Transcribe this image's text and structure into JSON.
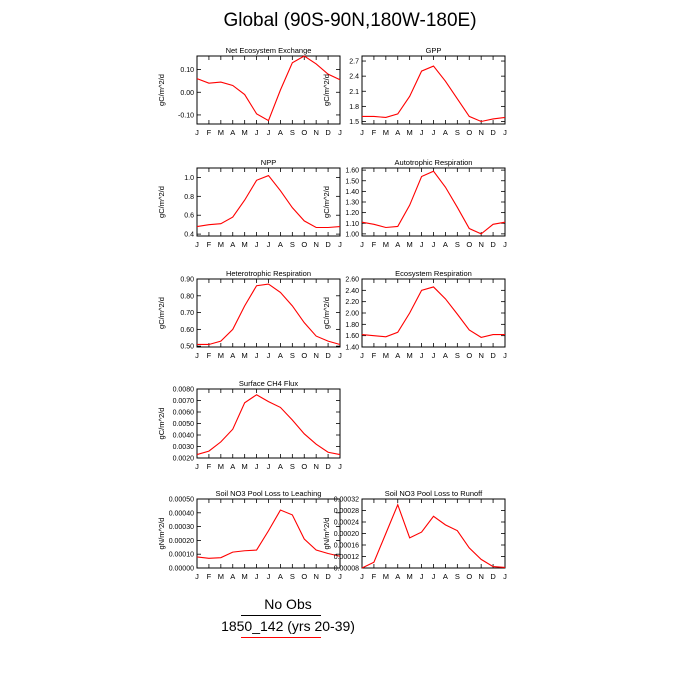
{
  "title": "Global (90S-90N,180W-180E)",
  "legend": {
    "entries": [
      {
        "label": "No Obs",
        "color": "#000000"
      },
      {
        "label": "1850_142 (yrs 20-39)",
        "color": "#ff0000"
      }
    ]
  },
  "chart_data": [
    {
      "type": "line",
      "title": "Net Ecosystem Exchange",
      "ylabel": "gC/m^2/d",
      "categories": [
        "J",
        "F",
        "M",
        "A",
        "M",
        "J",
        "J",
        "A",
        "S",
        "O",
        "N",
        "D",
        "J"
      ],
      "yticks": [
        -0.1,
        0.0,
        0.1
      ],
      "yticklabels": [
        "-0.10",
        "0.00",
        "0.10"
      ],
      "ylim": [
        -0.14,
        0.16
      ],
      "series": [
        {
          "color": "#ff0000",
          "values": [
            0.06,
            0.04,
            0.045,
            0.03,
            -0.01,
            -0.095,
            -0.125,
            0.01,
            0.13,
            0.16,
            0.125,
            0.08,
            0.055
          ]
        }
      ]
    },
    {
      "type": "line",
      "title": "GPP",
      "ylabel": "gC/m^2/d",
      "categories": [
        "J",
        "F",
        "M",
        "A",
        "M",
        "J",
        "J",
        "A",
        "S",
        "O",
        "N",
        "D",
        "J"
      ],
      "yticks": [
        1.5,
        1.8,
        2.1,
        2.4,
        2.7
      ],
      "yticklabels": [
        "1.5",
        "1.8",
        "2.1",
        "2.4",
        "2.7"
      ],
      "ylim": [
        1.45,
        2.8
      ],
      "series": [
        {
          "color": "#ff0000",
          "values": [
            1.6,
            1.6,
            1.58,
            1.65,
            2.0,
            2.5,
            2.6,
            2.3,
            1.95,
            1.6,
            1.5,
            1.55,
            1.58
          ]
        }
      ]
    },
    {
      "type": "line",
      "title": "NPP",
      "ylabel": "gC/m^2/d",
      "categories": [
        "J",
        "F",
        "M",
        "A",
        "M",
        "J",
        "J",
        "A",
        "S",
        "O",
        "N",
        "D",
        "J"
      ],
      "yticks": [
        0.4,
        0.6,
        0.8,
        1.0
      ],
      "yticklabels": [
        "0.4",
        "0.6",
        "0.8",
        "1.0"
      ],
      "ylim": [
        0.38,
        1.1
      ],
      "series": [
        {
          "color": "#ff0000",
          "values": [
            0.48,
            0.5,
            0.51,
            0.58,
            0.76,
            0.97,
            1.02,
            0.86,
            0.68,
            0.54,
            0.47,
            0.47,
            0.48
          ]
        }
      ]
    },
    {
      "type": "line",
      "title": "Autotrophic Respiration",
      "ylabel": "gC/m^2/d",
      "categories": [
        "J",
        "F",
        "M",
        "A",
        "M",
        "J",
        "J",
        "A",
        "S",
        "O",
        "N",
        "D",
        "J"
      ],
      "yticks": [
        1.0,
        1.1,
        1.2,
        1.3,
        1.4,
        1.5,
        1.6
      ],
      "yticklabels": [
        "1.00",
        "1.10",
        "1.20",
        "1.30",
        "1.40",
        "1.50",
        "1.60"
      ],
      "ylim": [
        0.98,
        1.62
      ],
      "series": [
        {
          "color": "#ff0000",
          "values": [
            1.11,
            1.09,
            1.06,
            1.07,
            1.27,
            1.54,
            1.59,
            1.44,
            1.25,
            1.05,
            1.0,
            1.09,
            1.11
          ]
        }
      ]
    },
    {
      "type": "line",
      "title": "Heterotrophic Respiration",
      "ylabel": "gC/m^2/d",
      "categories": [
        "J",
        "F",
        "M",
        "A",
        "M",
        "J",
        "J",
        "A",
        "S",
        "O",
        "N",
        "D",
        "J"
      ],
      "yticks": [
        0.5,
        0.6,
        0.7,
        0.8,
        0.9
      ],
      "yticklabels": [
        "0.50",
        "0.60",
        "0.70",
        "0.80",
        "0.90"
      ],
      "ylim": [
        0.495,
        0.9
      ],
      "series": [
        {
          "color": "#ff0000",
          "values": [
            0.51,
            0.51,
            0.53,
            0.6,
            0.74,
            0.86,
            0.87,
            0.82,
            0.74,
            0.64,
            0.56,
            0.53,
            0.51
          ]
        }
      ]
    },
    {
      "type": "line",
      "title": "Ecosystem Respiration",
      "ylabel": "gC/m^2/d",
      "categories": [
        "J",
        "F",
        "M",
        "A",
        "M",
        "J",
        "J",
        "A",
        "S",
        "O",
        "N",
        "D",
        "J"
      ],
      "yticks": [
        1.4,
        1.6,
        1.8,
        2.0,
        2.2,
        2.4,
        2.6
      ],
      "yticklabels": [
        "1.40",
        "1.60",
        "1.80",
        "2.00",
        "2.20",
        "2.40",
        "2.60"
      ],
      "ylim": [
        1.4,
        2.6
      ],
      "series": [
        {
          "color": "#ff0000",
          "values": [
            1.62,
            1.6,
            1.58,
            1.66,
            2.0,
            2.4,
            2.46,
            2.25,
            1.98,
            1.7,
            1.57,
            1.62,
            1.62
          ]
        }
      ]
    },
    {
      "type": "line",
      "title": "Surface CH4 Flux",
      "ylabel": "gC/m^2/d",
      "categories": [
        "J",
        "F",
        "M",
        "A",
        "M",
        "J",
        "J",
        "A",
        "S",
        "O",
        "N",
        "D",
        "J"
      ],
      "yticks": [
        0.002,
        0.003,
        0.004,
        0.005,
        0.006,
        0.007,
        0.008
      ],
      "yticklabels": [
        "0.0020",
        "0.0030",
        "0.0040",
        "0.0050",
        "0.0060",
        "0.0070",
        "0.0080"
      ],
      "ylim": [
        0.002,
        0.008
      ],
      "series": [
        {
          "color": "#ff0000",
          "values": [
            0.0023,
            0.0026,
            0.0034,
            0.0045,
            0.0068,
            0.0075,
            0.0069,
            0.0064,
            0.0053,
            0.0041,
            0.0032,
            0.0025,
            0.0023
          ]
        }
      ]
    },
    {
      "type": "line",
      "title": "Soil NO3 Pool Loss to Leaching",
      "ylabel": "gN/m^2/d",
      "categories": [
        "J",
        "F",
        "M",
        "A",
        "M",
        "J",
        "J",
        "A",
        "S",
        "O",
        "N",
        "D",
        "J"
      ],
      "yticks": [
        0.0,
        0.0001,
        0.0002,
        0.0003,
        0.0004,
        0.0005
      ],
      "yticklabels": [
        "0.00000",
        "0.00010",
        "0.00020",
        "0.00030",
        "0.00040",
        "0.00050"
      ],
      "ylim": [
        0.0,
        0.0005
      ],
      "series": [
        {
          "color": "#ff0000",
          "values": [
            8e-05,
            7e-05,
            7.5e-05,
            0.000115,
            0.000125,
            0.00013,
            0.00027,
            0.00042,
            0.000385,
            0.00021,
            0.00013,
            0.000105,
            8.5e-05
          ]
        }
      ]
    },
    {
      "type": "line",
      "title": "Soil NO3 Pool Loss to Runoff",
      "ylabel": "gN/m^2/d",
      "categories": [
        "J",
        "F",
        "M",
        "A",
        "M",
        "J",
        "J",
        "A",
        "S",
        "O",
        "N",
        "D",
        "J"
      ],
      "yticks": [
        8e-05,
        0.00012,
        0.00016,
        0.0002,
        0.00024,
        0.00028,
        0.00032
      ],
      "yticklabels": [
        "0.00008",
        "0.00012",
        "0.00016",
        "0.00020",
        "0.00024",
        "0.00028",
        "0.00032"
      ],
      "ylim": [
        8e-05,
        0.00032
      ],
      "series": [
        {
          "color": "#ff0000",
          "values": [
            8e-05,
            0.0001,
            0.0002,
            0.0003,
            0.000185,
            0.000205,
            0.00026,
            0.00023,
            0.00021,
            0.00015,
            0.00011,
            8.5e-05,
            8.2e-05
          ]
        }
      ]
    }
  ]
}
